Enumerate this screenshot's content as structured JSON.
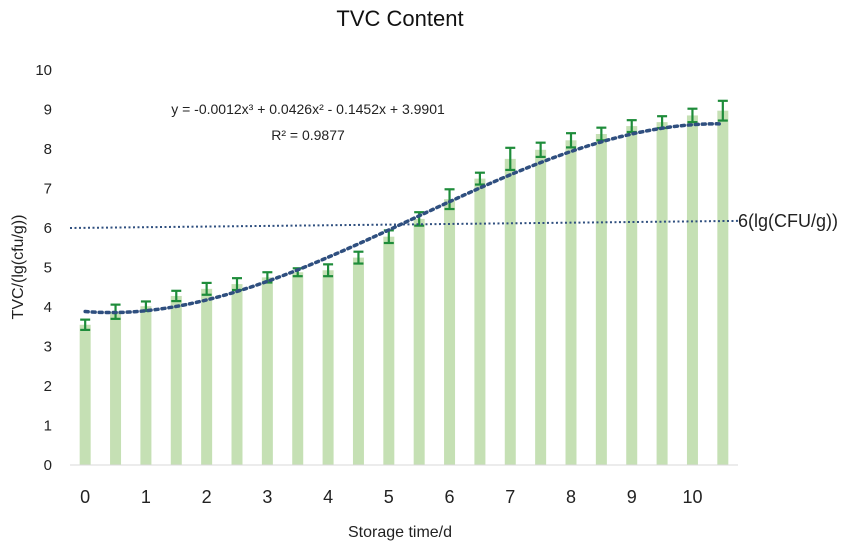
{
  "chart_data": {
    "type": "bar",
    "title": "TVC Content",
    "xlabel": "Storage time/d",
    "ylabel": "TVC/(lg(cfu/g))",
    "x_ticks": [
      "0",
      "1",
      "2",
      "3",
      "4",
      "5",
      "6",
      "7",
      "8",
      "9",
      "10"
    ],
    "y_ticks": [
      "0",
      "1",
      "2",
      "3",
      "4",
      "5",
      "6",
      "7",
      "8",
      "9",
      "10"
    ],
    "xlim": [
      -0.25,
      10.75
    ],
    "ylim": [
      0,
      10
    ],
    "grid": false,
    "x": [
      0,
      0.5,
      1,
      1.5,
      2,
      2.5,
      3,
      3.5,
      4,
      4.5,
      5,
      5.5,
      6,
      6.5,
      7,
      7.5,
      8,
      8.5,
      9,
      9.5,
      10,
      10.5
    ],
    "values": [
      3.55,
      3.88,
      4.02,
      4.28,
      4.46,
      4.58,
      4.75,
      4.88,
      4.93,
      5.25,
      5.78,
      6.23,
      6.73,
      7.25,
      7.75,
      7.98,
      8.22,
      8.38,
      8.58,
      8.68,
      8.85,
      8.97
    ],
    "errors": [
      0.13,
      0.18,
      0.12,
      0.13,
      0.15,
      0.15,
      0.13,
      0.1,
      0.15,
      0.15,
      0.16,
      0.17,
      0.25,
      0.15,
      0.28,
      0.18,
      0.18,
      0.16,
      0.15,
      0.15,
      0.17,
      0.25
    ],
    "trendline": {
      "type": "polynomial",
      "coefficients": [
        -0.0012,
        0.0426,
        -0.1452,
        3.9901
      ],
      "equation": "y = -0.0012x³ + 0.0426x² - 0.1452x + 3.9901",
      "r_squared": "R² = 0.9877"
    },
    "threshold": {
      "y_start": 6.0,
      "y_end": 6.18,
      "label": "6(lg(CFU/g))"
    },
    "colors": {
      "bars": "#c5e0b4",
      "error_bars": "#1e8c3a",
      "trendline": "#2f4f7f",
      "threshold": "#2f4f7f"
    }
  }
}
